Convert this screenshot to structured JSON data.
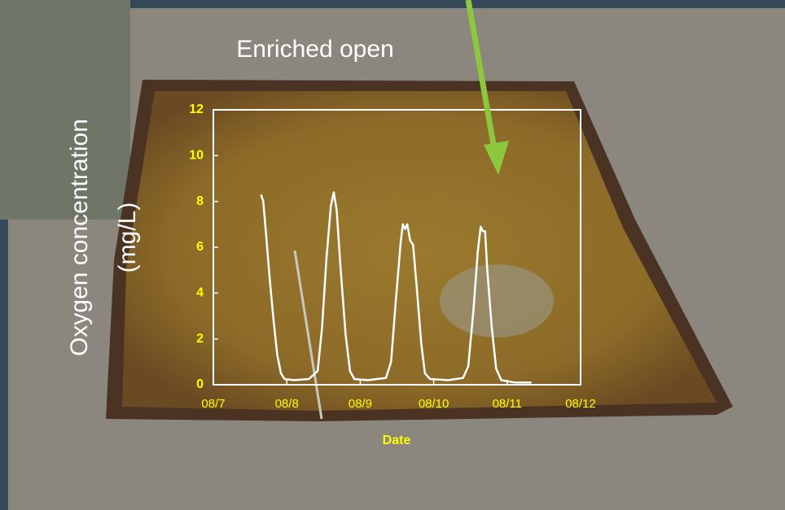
{
  "chart_data": {
    "type": "line",
    "title": "Enriched open",
    "ylabel": [
      "Oxygen concentration",
      "(mg/L)"
    ],
    "xlabel": "Date",
    "xlim": [
      7,
      12
    ],
    "ylim": [
      0,
      12
    ],
    "xticks": [
      {
        "value": 7,
        "label": "08/7"
      },
      {
        "value": 8,
        "label": "08/8"
      },
      {
        "value": 9,
        "label": "08/9"
      },
      {
        "value": 10,
        "label": "08/10"
      },
      {
        "value": 11,
        "label": "08/11"
      },
      {
        "value": 12,
        "label": "08/12"
      }
    ],
    "yticks": [
      0,
      2,
      4,
      6,
      8,
      10,
      12
    ],
    "series": [
      {
        "color": "#ffffff",
        "x": [
          7.65,
          7.68,
          7.72,
          7.77,
          7.82,
          7.87,
          7.92,
          7.97,
          8.1,
          8.3,
          8.42,
          8.48,
          8.54,
          8.6,
          8.64,
          8.68,
          8.73,
          8.8,
          8.86,
          8.92,
          9.1,
          9.35,
          9.42,
          9.48,
          9.55,
          9.58,
          9.61,
          9.64,
          9.68,
          9.72,
          9.77,
          9.83,
          9.88,
          9.95,
          10.2,
          10.4,
          10.47,
          10.54,
          10.6,
          10.64,
          10.67,
          10.7,
          10.73,
          10.79,
          10.85,
          10.92,
          11.1,
          11.33
        ],
        "values": [
          8.3,
          8.0,
          6.5,
          4.5,
          2.8,
          1.3,
          0.5,
          0.25,
          0.2,
          0.25,
          0.6,
          2.5,
          5.5,
          7.8,
          8.4,
          7.6,
          5.2,
          2.2,
          0.6,
          0.25,
          0.2,
          0.3,
          1.0,
          3.5,
          6.2,
          7.0,
          6.8,
          7.0,
          6.3,
          6.1,
          4.2,
          1.8,
          0.5,
          0.25,
          0.2,
          0.3,
          0.8,
          3.2,
          5.8,
          6.9,
          6.7,
          6.7,
          5.0,
          2.5,
          0.7,
          0.2,
          0.1,
          0.1
        ]
      }
    ]
  }
}
